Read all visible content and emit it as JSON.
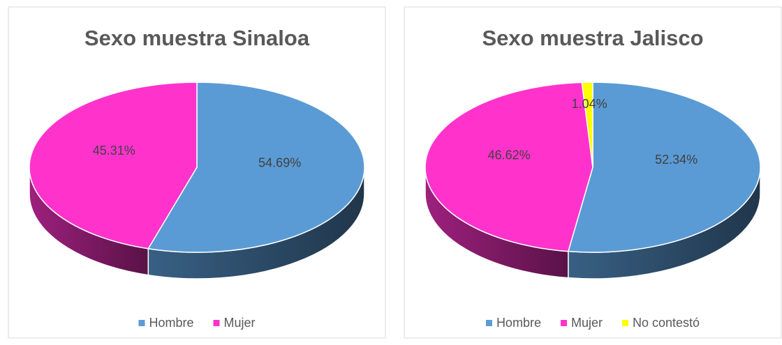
{
  "chart_data": [
    {
      "type": "pie",
      "title": "Sexo muestra Sinaloa",
      "categories": [
        "Hombre",
        "Mujer"
      ],
      "values": [
        54.69,
        45.31
      ],
      "value_labels": [
        "54.69%",
        "45.31%"
      ],
      "colors": [
        "#5b9bd5",
        "#ff33cc"
      ],
      "legend": "bottom"
    },
    {
      "type": "pie",
      "title": "Sexo muestra Jalisco",
      "categories": [
        "Hombre",
        "Mujer",
        "No contestó"
      ],
      "values": [
        52.34,
        46.62,
        1.04
      ],
      "value_labels": [
        "52.34%",
        "46.62%",
        "1.04%"
      ],
      "colors": [
        "#5b9bd5",
        "#ff33cc",
        "#ffff00"
      ],
      "legend": "bottom"
    }
  ]
}
